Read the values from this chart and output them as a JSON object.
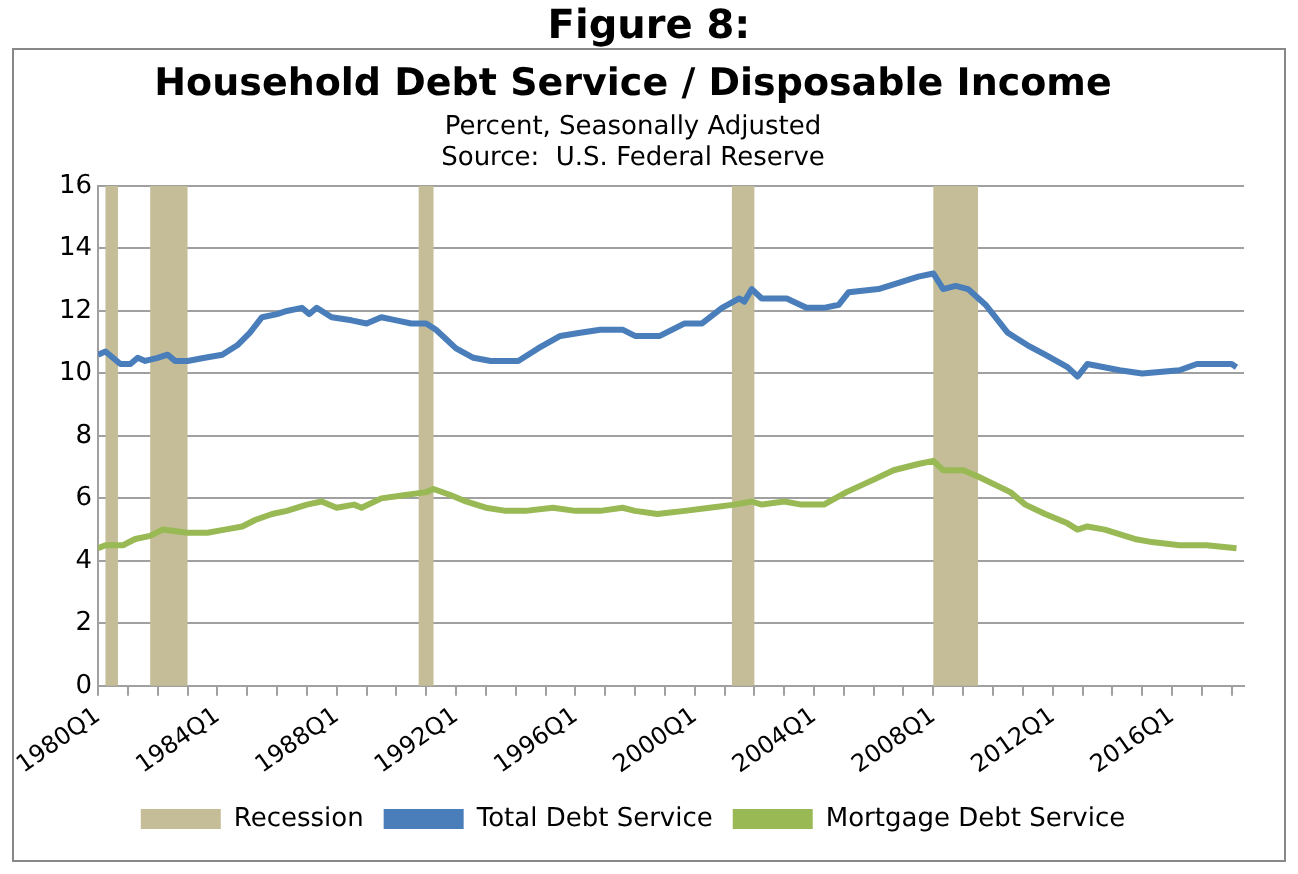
{
  "chart_data": {
    "type": "line",
    "title": "Household Debt Service / Disposable Income",
    "subtitle": [
      "Percent, Seasonally Adjusted",
      "Source:  U.S. Federal Reserve"
    ],
    "annotations": [
      "Figure 8:"
    ],
    "x": [
      "1980-01",
      "1980-04",
      "1980-10",
      "1981-02",
      "1981-05",
      "1981-08",
      "1982-01",
      "1982-05",
      "1982-08",
      "1983-01",
      "1983-08",
      "1984-03",
      "1984-09",
      "1985-02",
      "1985-07",
      "1986-01",
      "1986-05",
      "1986-11",
      "1987-02",
      "1987-05",
      "1987-11",
      "1988-07",
      "1989-01",
      "1989-07",
      "1990-01",
      "1990-07",
      "1991-01",
      "1991-05",
      "1992-01",
      "1992-08",
      "1993-03",
      "1993-09",
      "1994-02",
      "1994-10",
      "1995-07",
      "1996-03",
      "1996-11",
      "1997-08",
      "1998-01",
      "1998-11",
      "1999-09",
      "2000-04",
      "2000-12",
      "2001-07",
      "2001-09",
      "2001-12",
      "2002-04",
      "2003-02",
      "2003-10",
      "2004-05",
      "2004-11",
      "2005-03",
      "2006-03",
      "2006-11",
      "2007-07",
      "2008-01",
      "2008-05",
      "2008-10",
      "2009-03",
      "2009-10",
      "2010-07",
      "2011-03",
      "2011-10",
      "2012-07",
      "2012-11",
      "2013-03",
      "2014-04",
      "2015-01",
      "2016-04",
      "2016-11",
      "2017-07",
      "2018-01",
      "2018-03"
    ],
    "series": [
      {
        "name": "Total Debt Service",
        "color": "#4a7ebb",
        "values": [
          10.6,
          10.7,
          10.3,
          10.3,
          10.5,
          10.4,
          10.5,
          10.6,
          10.4,
          10.4,
          10.5,
          10.6,
          10.9,
          11.3,
          11.8,
          11.9,
          12.0,
          12.1,
          11.9,
          12.1,
          11.8,
          11.7,
          11.6,
          11.8,
          11.7,
          11.6,
          11.6,
          11.4,
          10.8,
          10.5,
          10.4,
          10.4,
          10.4,
          10.8,
          11.2,
          11.3,
          11.4,
          11.4,
          11.2,
          11.2,
          11.6,
          11.6,
          12.1,
          12.4,
          12.3,
          12.7,
          12.4,
          12.4,
          12.1,
          12.1,
          12.2,
          12.6,
          12.7,
          12.9,
          13.1,
          13.2,
          12.7,
          12.8,
          12.7,
          12.2,
          11.3,
          10.9,
          10.6,
          10.2,
          9.9,
          10.3,
          10.1,
          10.0,
          10.1,
          10.3,
          10.3,
          10.3,
          10.2
        ]
      },
      {
        "name": "Mortgage Debt Service",
        "color": "#98b954",
        "x": [
          "1980-01",
          "1980-04",
          "1980-11",
          "1981-04",
          "1981-10",
          "1982-03",
          "1983-01",
          "1983-09",
          "1984-04",
          "1984-11",
          "1985-04",
          "1985-11",
          "1986-05",
          "1987-01",
          "1987-07",
          "1988-01",
          "1988-08",
          "1988-11",
          "1989-07",
          "1990-04",
          "1991-01",
          "1991-04",
          "1991-11",
          "1992-05",
          "1993-01",
          "1993-09",
          "1994-05",
          "1995-04",
          "1996-01",
          "1996-11",
          "1997-08",
          "1998-01",
          "1998-10",
          "1999-09",
          "2000-07",
          "2001-05",
          "2001-12",
          "2002-04",
          "2003-01",
          "2003-08",
          "2004-05",
          "2005-02",
          "2006-01",
          "2006-09",
          "2007-07",
          "2008-01",
          "2008-05",
          "2009-01",
          "2009-07",
          "2010-08",
          "2011-02",
          "2011-10",
          "2012-07",
          "2012-11",
          "2013-03",
          "2013-10",
          "2014-10",
          "2015-05",
          "2016-04",
          "2017-03",
          "2018-03"
        ],
        "values": [
          4.4,
          4.5,
          4.5,
          4.7,
          4.8,
          5.0,
          4.9,
          4.9,
          5.0,
          5.1,
          5.3,
          5.5,
          5.6,
          5.8,
          5.9,
          5.7,
          5.8,
          5.7,
          6.0,
          6.1,
          6.2,
          6.3,
          6.1,
          5.9,
          5.7,
          5.6,
          5.6,
          5.7,
          5.6,
          5.6,
          5.7,
          5.6,
          5.5,
          5.6,
          5.7,
          5.8,
          5.9,
          5.8,
          5.9,
          5.8,
          5.8,
          6.2,
          6.6,
          6.9,
          7.1,
          7.2,
          6.9,
          6.9,
          6.7,
          6.2,
          5.8,
          5.5,
          5.2,
          5.0,
          5.1,
          5.0,
          4.7,
          4.6,
          4.5,
          4.5,
          4.4
        ]
      }
    ],
    "bands": [
      {
        "axis": "x",
        "from": "1980-04",
        "to": "1980-09",
        "label": "Recession",
        "color": "#c4bd97"
      },
      {
        "axis": "x",
        "from": "1981-10",
        "to": "1983-01",
        "color": "#c4bd97"
      },
      {
        "axis": "x",
        "from": "1990-10",
        "to": "1991-04",
        "color": "#c4bd97"
      },
      {
        "axis": "x",
        "from": "2001-04",
        "to": "2002-01",
        "color": "#c4bd97"
      },
      {
        "axis": "x",
        "from": "2008-01",
        "to": "2009-07",
        "color": "#c4bd97"
      }
    ],
    "xlim": [
      "1980-01",
      "2018-06"
    ],
    "xticks": [
      {
        "value": "1980-01",
        "label": "1980Q1"
      },
      {
        "value": "1981-01",
        "label": null
      },
      {
        "value": "1982-01",
        "label": null
      },
      {
        "value": "1983-01",
        "label": null
      },
      {
        "value": "1984-01",
        "label": "1984Q1"
      },
      {
        "value": "1985-01",
        "label": null
      },
      {
        "value": "1986-01",
        "label": null
      },
      {
        "value": "1987-01",
        "label": null
      },
      {
        "value": "1988-01",
        "label": "1988Q1"
      },
      {
        "value": "1989-01",
        "label": null
      },
      {
        "value": "1990-01",
        "label": null
      },
      {
        "value": "1991-01",
        "label": null
      },
      {
        "value": "1992-01",
        "label": "1992Q1"
      },
      {
        "value": "1993-01",
        "label": null
      },
      {
        "value": "1994-01",
        "label": null
      },
      {
        "value": "1995-01",
        "label": null
      },
      {
        "value": "1996-01",
        "label": "1996Q1"
      },
      {
        "value": "1997-01",
        "label": null
      },
      {
        "value": "1998-01",
        "label": null
      },
      {
        "value": "1999-01",
        "label": null
      },
      {
        "value": "2000-01",
        "label": "2000Q1"
      },
      {
        "value": "2001-01",
        "label": null
      },
      {
        "value": "2002-01",
        "label": null
      },
      {
        "value": "2003-01",
        "label": null
      },
      {
        "value": "2004-01",
        "label": "2004Q1"
      },
      {
        "value": "2005-01",
        "label": null
      },
      {
        "value": "2006-01",
        "label": null
      },
      {
        "value": "2007-01",
        "label": null
      },
      {
        "value": "2008-01",
        "label": "2008Q1"
      },
      {
        "value": "2009-01",
        "label": null
      },
      {
        "value": "2010-01",
        "label": null
      },
      {
        "value": "2011-01",
        "label": null
      },
      {
        "value": "2012-01",
        "label": "2012Q1"
      },
      {
        "value": "2013-01",
        "label": null
      },
      {
        "value": "2014-01",
        "label": null
      },
      {
        "value": "2015-01",
        "label": null
      },
      {
        "value": "2016-01",
        "label": "2016Q1"
      },
      {
        "value": "2017-01",
        "label": null
      },
      {
        "value": "2018-01",
        "label": null
      }
    ],
    "ylim": [
      0,
      16
    ],
    "yticks": [
      0,
      2,
      4,
      6,
      8,
      10,
      12,
      14,
      16
    ],
    "grid": "y",
    "legend": "bottom",
    "marker": "none",
    "line_style": "solid"
  }
}
